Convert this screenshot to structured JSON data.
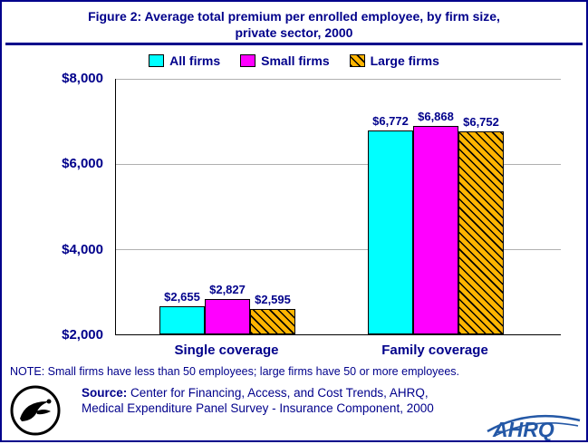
{
  "title_line1": "Figure 2: Average total premium per enrolled employee, by firm size,",
  "title_line2": "private sector, 2000",
  "legend": [
    {
      "label": "All firms",
      "color": "#00FFFF",
      "hatch": false
    },
    {
      "label": "Small firms",
      "color": "#FF00FF",
      "hatch": false
    },
    {
      "label": "Large firms",
      "color": "#FFB400",
      "hatch": true
    }
  ],
  "chart_data": {
    "type": "bar",
    "categories": [
      "Single coverage",
      "Family coverage"
    ],
    "series": [
      {
        "name": "All firms",
        "values": [
          2655,
          6772
        ],
        "labels": [
          "$2,655",
          "$6,772"
        ],
        "color": "#00FFFF",
        "hatch": false
      },
      {
        "name": "Small firms",
        "values": [
          2827,
          6868
        ],
        "labels": [
          "$2,827",
          "$6,868"
        ],
        "color": "#FF00FF",
        "hatch": false
      },
      {
        "name": "Large firms",
        "values": [
          2595,
          6752
        ],
        "labels": [
          "$2,595",
          "$6,752"
        ],
        "color": "#FFB400",
        "hatch": true
      }
    ],
    "ylim": [
      2000,
      8000
    ],
    "yticks": [
      2000,
      4000,
      6000,
      8000
    ],
    "ytick_labels": [
      "$2,000",
      "$4,000",
      "$6,000",
      "$8,000"
    ],
    "grid": true,
    "legend_position": "top"
  },
  "note": "NOTE: Small firms have less than 50 employees; large firms have 50 or more employees.",
  "source_label": "Source:",
  "source_line1": " Center for Financing, Access, and Cost Trends, AHRQ,",
  "source_line2": "Medical Expenditure Panel Survey - Insurance Component, 2000",
  "ahrq_text": "AHRQ",
  "accent_color": "#00008B"
}
